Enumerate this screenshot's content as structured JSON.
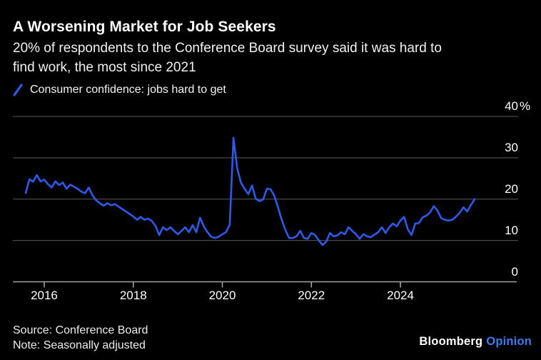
{
  "header": {
    "title": "A Worsening Market for Job Seekers",
    "subtitle": "20% of respondents to the Conference Board survey said it was hard to find work, the most since 2021",
    "subtitle_lines": [
      "20% of respondents to the Conference Board survey said it was hard to",
      "find work, the most since 2021"
    ]
  },
  "legend": {
    "label": "Consumer confidence: jobs hard to get",
    "icon": "line-slash-icon",
    "color": "#2d5aeb"
  },
  "chart_data": {
    "type": "line",
    "title": "A Worsening Market for Job Seekers",
    "unit": "%",
    "ylim": [
      0,
      40
    ],
    "grid": "horizontal",
    "legend_position": "top-left",
    "yticks": [
      {
        "value": 40,
        "label": "40",
        "suffix": "%"
      },
      {
        "value": 30,
        "label": "30",
        "suffix": ""
      },
      {
        "value": 20,
        "label": "20",
        "suffix": ""
      },
      {
        "value": 10,
        "label": "10",
        "suffix": ""
      },
      {
        "value": 0,
        "label": "0",
        "suffix": ""
      }
    ],
    "xticks": [
      {
        "year": 2016,
        "label": "2016"
      },
      {
        "year": 2018,
        "label": "2018"
      },
      {
        "year": 2020,
        "label": "2020"
      },
      {
        "year": 2022,
        "label": "2022"
      },
      {
        "year": 2024,
        "label": "2024"
      }
    ],
    "series": [
      {
        "name": "Consumer confidence: jobs hard to get",
        "color": "#2d5aeb",
        "start_month": "2015-08",
        "frequency": "monthly",
        "values": [
          21.5,
          24.8,
          24.2,
          25.8,
          24.3,
          24.7,
          23.6,
          22.8,
          24.3,
          23.4,
          24.0,
          22.5,
          23.5,
          23.0,
          22.5,
          21.8,
          21.4,
          22.8,
          20.9,
          19.7,
          19.0,
          18.4,
          19.0,
          18.5,
          18.8,
          18.2,
          17.6,
          17.0,
          16.4,
          15.8,
          15.0,
          15.7,
          15.0,
          15.3,
          14.7,
          13.5,
          11.3,
          13.2,
          12.5,
          13.2,
          12.3,
          11.5,
          12.3,
          13.2,
          12.0,
          13.7,
          12.0,
          15.5,
          13.4,
          12.0,
          10.9,
          10.6,
          10.9,
          11.5,
          12.0,
          13.8,
          34.8,
          27.5,
          24.0,
          22.5,
          21.2,
          23.3,
          20.1,
          19.5,
          19.9,
          22.5,
          22.4,
          20.8,
          18.0,
          15.0,
          12.5,
          10.6,
          10.6,
          11.0,
          12.3,
          10.6,
          10.4,
          11.8,
          11.3,
          10.0,
          8.9,
          9.7,
          11.8,
          11.0,
          11.2,
          12.0,
          11.5,
          13.2,
          12.3,
          11.5,
          10.4,
          11.5,
          11.0,
          10.8,
          11.4,
          12.0,
          13.2,
          11.8,
          13.2,
          14.1,
          13.4,
          14.8,
          15.7,
          12.7,
          11.3,
          14.1,
          14.2,
          15.6,
          16.0,
          16.8,
          18.3,
          17.2,
          15.4,
          15.0,
          14.8,
          15.0,
          15.8,
          16.7,
          18.0,
          17.0,
          18.6,
          20.0
        ]
      }
    ],
    "colors": {
      "background": "#000000",
      "gridline": "#4b4b4b",
      "axis": "#a3a3a3",
      "text": "#ffffff",
      "line": "#2d5aeb"
    }
  },
  "footer": {
    "source": "Source: Conference Board",
    "note": "Note: Seasonally adjusted"
  },
  "branding": {
    "brand": "Bloomberg",
    "product": "Opinion",
    "product_color": "#3b7bf2"
  }
}
